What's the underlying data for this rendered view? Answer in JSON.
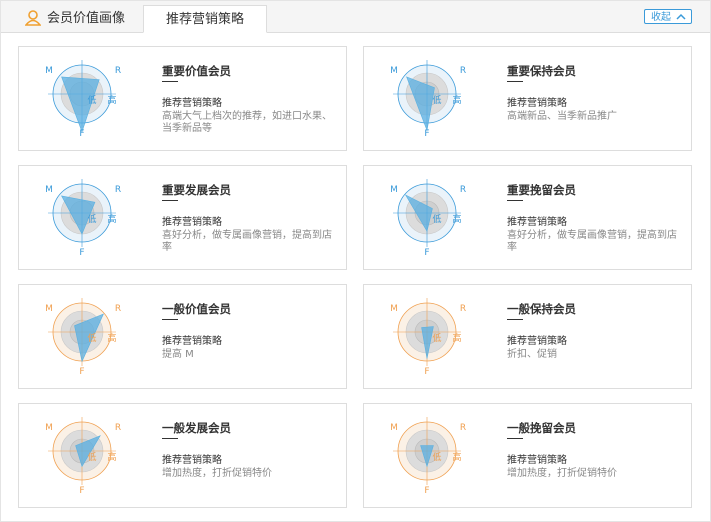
{
  "tabs": [
    {
      "label": "会员价值画像"
    },
    {
      "label": "推荐营销策略"
    }
  ],
  "collapse_button": "收起",
  "cards": [
    {
      "title": "重要价值会员",
      "subtitle": "推荐营销策略",
      "description": "高端大气上档次的推荐，如进口水果、当季新品等",
      "radar": {
        "m": "M",
        "r": "R",
        "f": "F",
        "low": "低",
        "high": "高"
      }
    },
    {
      "title": "重要保持会员",
      "subtitle": "推荐营销策略",
      "description": "高端新品、当季新品推广",
      "radar": {
        "m": "M",
        "r": "R",
        "f": "F",
        "low": "低",
        "high": "高"
      }
    },
    {
      "title": "重要发展会员",
      "subtitle": "推荐营销策略",
      "description": "喜好分析，做专属画像营销，提高到店率",
      "radar": {
        "m": "M",
        "r": "R",
        "f": "F",
        "low": "低",
        "high": "高"
      }
    },
    {
      "title": "重要挽留会员",
      "subtitle": "推荐营销策略",
      "description": "喜好分析，做专属画像营销，提高到店率",
      "radar": {
        "m": "M",
        "r": "R",
        "f": "F",
        "low": "低",
        "high": "高"
      }
    },
    {
      "title": "一般价值会员",
      "subtitle": "推荐营销策略",
      "description": "提高 M",
      "radar": {
        "m": "M",
        "r": "R",
        "f": "F",
        "low": "低",
        "high": "高"
      }
    },
    {
      "title": "一般保持会员",
      "subtitle": "推荐营销策略",
      "description": "折扣、促销",
      "radar": {
        "m": "M",
        "r": "R",
        "f": "F",
        "low": "低",
        "high": "高"
      }
    },
    {
      "title": "一般发展会员",
      "subtitle": "推荐营销策略",
      "description": "增加热度，打折促销特价",
      "radar": {
        "m": "M",
        "r": "R",
        "f": "F",
        "low": "低",
        "high": "高"
      }
    },
    {
      "title": "一般挽留会员",
      "subtitle": "推荐营销策略",
      "description": "增加热度，打折促销特价",
      "radar": {
        "m": "M",
        "r": "R",
        "f": "F",
        "low": "低",
        "high": "高"
      }
    }
  ]
}
